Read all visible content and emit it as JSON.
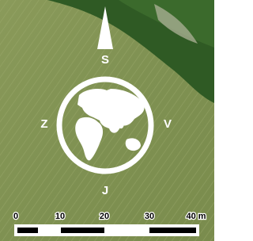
{
  "compass": {
    "north": "S",
    "west": "Z",
    "east": "V",
    "south": "J"
  },
  "scale_bar": {
    "labels": [
      "0",
      "10",
      "20",
      "30",
      "40 m"
    ]
  }
}
